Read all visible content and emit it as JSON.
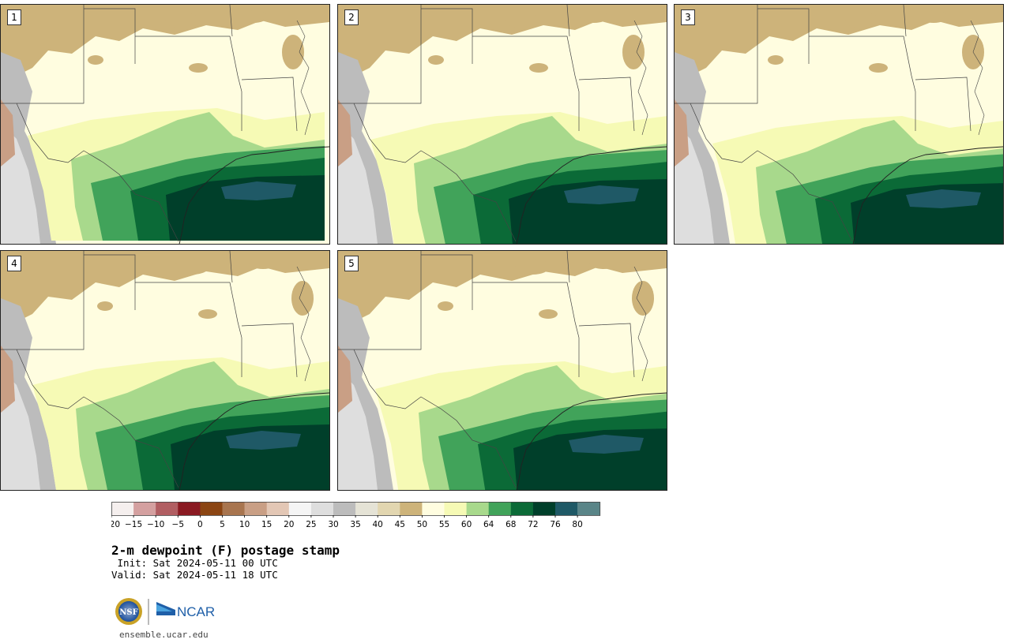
{
  "panels": [
    {
      "label": "1"
    },
    {
      "label": "2"
    },
    {
      "label": "3"
    },
    {
      "label": "4"
    },
    {
      "label": "5"
    }
  ],
  "colorbar": {
    "tick_labels": [
      "−20",
      "−15",
      "−10",
      "−5",
      "0",
      "5",
      "10",
      "15",
      "20",
      "25",
      "30",
      "35",
      "40",
      "45",
      "50",
      "55",
      "60",
      "64",
      "68",
      "72",
      "76",
      "80"
    ],
    "colors": [
      "#f5efee",
      "#d4a0a0",
      "#b15e62",
      "#8a1a22",
      "#8b4513",
      "#a8754f",
      "#c99f85",
      "#e3c7b5",
      "#f5f5f5",
      "#dedede",
      "#bcbcbc",
      "#e5e3d6",
      "#e2d6b0",
      "#cdb37a",
      "#fffde0",
      "#f6fab5",
      "#a8d98c",
      "#41a35a",
      "#0b6a37",
      "#003f2a",
      "#1f5966",
      "#5a8588"
    ]
  },
  "title": "2-m dewpoint (F) postage stamp",
  "init_line": " Init: Sat 2024-05-11 00 UTC",
  "valid_line": "Valid: Sat 2024-05-11 18 UTC",
  "logos": {
    "nsf": "NSF",
    "ncar": "NCAR"
  },
  "website": "ensemble.ucar.edu"
}
